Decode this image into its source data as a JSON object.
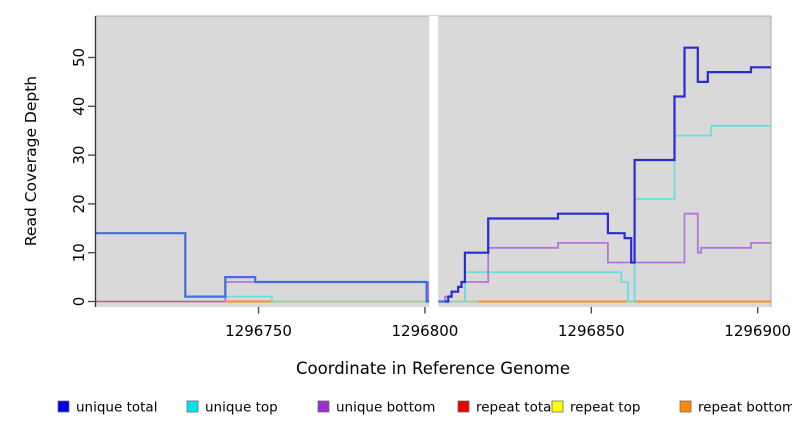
{
  "chart_data": {
    "type": "line",
    "subtype": "step-after-coverage",
    "title": "",
    "xlabel": "Coordinate in Reference Genome",
    "ylabel": "Read Coverage Depth",
    "x_domain": [
      1296701,
      1296904
    ],
    "y_domain": [
      0,
      58.5
    ],
    "x_ticks": [
      {
        "value": 1296750,
        "label": "1296750"
      },
      {
        "value": 1296800,
        "label": "1296800"
      },
      {
        "value": 1296850,
        "label": "1296850"
      },
      {
        "value": 1296900,
        "label": "1296900"
      }
    ],
    "y_ticks": [
      {
        "value": 0,
        "label": "0"
      },
      {
        "value": 10,
        "label": "10"
      },
      {
        "value": 20,
        "label": "20"
      },
      {
        "value": 30,
        "label": "30"
      },
      {
        "value": 40,
        "label": "40"
      },
      {
        "value": 50,
        "label": "50"
      }
    ],
    "panel": {
      "bg": "#d9d9d9",
      "border": "#a9a9a9",
      "axis_color": "#4d4d4d"
    },
    "gap_band": {
      "x1": 1296801.3,
      "x2": 1296804.0,
      "color": "#ffffff"
    },
    "series": [
      {
        "name": "repeat top",
        "segments": [
          {
            "color": "#93ce93",
            "width": 1.6,
            "points": [
              [
                1296754,
                0
              ],
              [
                1296801,
                0
              ]
            ]
          },
          {
            "color": "#93ce93",
            "width": 1.6,
            "points": [
              [
                1296804,
                0
              ],
              [
                1296816,
                0
              ]
            ]
          }
        ]
      },
      {
        "name": "repeat total",
        "segments": [
          {
            "color": "#ce5a78",
            "width": 1.6,
            "points": [
              [
                1296701,
                0
              ],
              [
                1296740,
                0
              ]
            ]
          }
        ]
      },
      {
        "name": "repeat bottom",
        "segments": [
          {
            "color": "#ff8d1e",
            "width": 2,
            "points": [
              [
                1296740,
                0
              ],
              [
                1296754,
                0
              ]
            ]
          },
          {
            "color": "#ff8d1e",
            "width": 2,
            "points": [
              [
                1296816,
                0
              ],
              [
                1296904,
                0
              ]
            ]
          }
        ]
      },
      {
        "name": "unique top",
        "segments": [
          {
            "color": "#6adede",
            "width": 1.8,
            "rise_from": 0,
            "points": [
              [
                1296740,
                1
              ],
              [
                1296754,
                0
              ]
            ]
          },
          {
            "color": "#6adede",
            "width": 1.8,
            "rise_from": 0,
            "points": [
              [
                1296812,
                6
              ],
              [
                1296859,
                4
              ],
              [
                1296861,
                0
              ],
              [
                1296863,
                21
              ],
              [
                1296875,
                34
              ],
              [
                1296886,
                36
              ],
              [
                1296904,
                36
              ]
            ]
          }
        ]
      },
      {
        "name": "unique bottom",
        "segments": [
          {
            "color": "#b375d6",
            "width": 1.8,
            "rise_from": 0,
            "points": [
              [
                1296740,
                4
              ],
              [
                1296801,
                0
              ],
              [
                1296806,
                1
              ],
              [
                1296808,
                2
              ],
              [
                1296810,
                3
              ],
              [
                1296811,
                4
              ],
              [
                1296819,
                11
              ],
              [
                1296840,
                12
              ],
              [
                1296855,
                8
              ],
              [
                1296878,
                18
              ],
              [
                1296882,
                10
              ],
              [
                1296883,
                11
              ],
              [
                1296898,
                12
              ],
              [
                1296904,
                12
              ]
            ]
          }
        ]
      },
      {
        "name": "unique total",
        "segments": [
          {
            "color": "#3f6de4",
            "width": 2.2,
            "points": [
              [
                1296701,
                14
              ],
              [
                1296728,
                1
              ],
              [
                1296740,
                5
              ],
              [
                1296749,
                4
              ],
              [
                1296800.5,
                0
              ],
              [
                1296806,
                0
              ]
            ]
          },
          {
            "color": "#2b2bd2",
            "width": 2.2,
            "points": [
              [
                1296806,
                0
              ],
              [
                1296807,
                1
              ],
              [
                1296808,
                2
              ],
              [
                1296810,
                3
              ],
              [
                1296811,
                4
              ],
              [
                1296812,
                10
              ],
              [
                1296819,
                17
              ],
              [
                1296840,
                18
              ],
              [
                1296855,
                14
              ],
              [
                1296860,
                13
              ],
              [
                1296862,
                8
              ],
              [
                1296863,
                29
              ],
              [
                1296875,
                42
              ],
              [
                1296878,
                52
              ],
              [
                1296882,
                45
              ],
              [
                1296885,
                47
              ],
              [
                1296898,
                48
              ],
              [
                1296904,
                48
              ]
            ]
          }
        ]
      }
    ],
    "legend": {
      "position": "bottom",
      "items": [
        {
          "label": "unique total",
          "color": "#0000ee"
        },
        {
          "label": "unique top",
          "color": "#00e5ee"
        },
        {
          "label": "unique bottom",
          "color": "#9b30d2"
        },
        {
          "label": "repeat total",
          "color": "#ee0000"
        },
        {
          "label": "repeat top",
          "color": "#ffff00"
        },
        {
          "label": "repeat bottom",
          "color": "#ff8c00"
        }
      ]
    }
  }
}
